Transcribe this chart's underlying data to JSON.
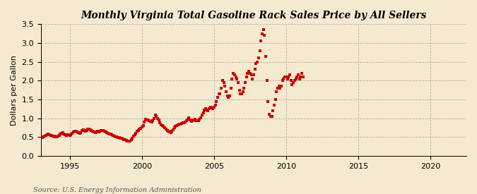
{
  "title": "Monthly Virginia Total Gasoline Rack Sales Price by All Sellers",
  "ylabel": "Dollars per Gallon",
  "source": "Source: U.S. Energy Information Administration",
  "background_color": "#f5ead0",
  "dot_color": "#cc0000",
  "xlim": [
    1993.0,
    2022.5
  ],
  "ylim": [
    0.0,
    3.5
  ],
  "xticks": [
    1995,
    2000,
    2005,
    2010,
    2015,
    2020
  ],
  "yticks": [
    0.0,
    0.5,
    1.0,
    1.5,
    2.0,
    2.5,
    3.0,
    3.5
  ],
  "data": [
    [
      1993.08,
      0.49
    ],
    [
      1993.17,
      0.51
    ],
    [
      1993.25,
      0.52
    ],
    [
      1993.33,
      0.55
    ],
    [
      1993.42,
      0.57
    ],
    [
      1993.5,
      0.58
    ],
    [
      1993.58,
      0.56
    ],
    [
      1993.67,
      0.55
    ],
    [
      1993.75,
      0.54
    ],
    [
      1993.83,
      0.53
    ],
    [
      1993.92,
      0.52
    ],
    [
      1994.0,
      0.5
    ],
    [
      1994.08,
      0.51
    ],
    [
      1994.17,
      0.53
    ],
    [
      1994.25,
      0.55
    ],
    [
      1994.33,
      0.58
    ],
    [
      1994.42,
      0.6
    ],
    [
      1994.5,
      0.62
    ],
    [
      1994.58,
      0.59
    ],
    [
      1994.67,
      0.57
    ],
    [
      1994.75,
      0.55
    ],
    [
      1994.83,
      0.56
    ],
    [
      1994.92,
      0.57
    ],
    [
      1995.0,
      0.55
    ],
    [
      1995.08,
      0.56
    ],
    [
      1995.17,
      0.6
    ],
    [
      1995.25,
      0.63
    ],
    [
      1995.33,
      0.66
    ],
    [
      1995.42,
      0.65
    ],
    [
      1995.5,
      0.63
    ],
    [
      1995.58,
      0.61
    ],
    [
      1995.67,
      0.6
    ],
    [
      1995.75,
      0.62
    ],
    [
      1995.83,
      0.68
    ],
    [
      1995.92,
      0.7
    ],
    [
      1996.0,
      0.68
    ],
    [
      1996.08,
      0.66
    ],
    [
      1996.17,
      0.68
    ],
    [
      1996.25,
      0.72
    ],
    [
      1996.33,
      0.72
    ],
    [
      1996.42,
      0.7
    ],
    [
      1996.5,
      0.68
    ],
    [
      1996.58,
      0.65
    ],
    [
      1996.67,
      0.63
    ],
    [
      1996.75,
      0.62
    ],
    [
      1996.83,
      0.64
    ],
    [
      1996.92,
      0.65
    ],
    [
      1997.0,
      0.63
    ],
    [
      1997.08,
      0.65
    ],
    [
      1997.17,
      0.67
    ],
    [
      1997.25,
      0.68
    ],
    [
      1997.33,
      0.68
    ],
    [
      1997.42,
      0.66
    ],
    [
      1997.5,
      0.64
    ],
    [
      1997.58,
      0.62
    ],
    [
      1997.67,
      0.6
    ],
    [
      1997.75,
      0.59
    ],
    [
      1997.83,
      0.58
    ],
    [
      1997.92,
      0.56
    ],
    [
      1998.0,
      0.54
    ],
    [
      1998.08,
      0.52
    ],
    [
      1998.17,
      0.51
    ],
    [
      1998.25,
      0.5
    ],
    [
      1998.33,
      0.49
    ],
    [
      1998.42,
      0.48
    ],
    [
      1998.5,
      0.47
    ],
    [
      1998.58,
      0.46
    ],
    [
      1998.67,
      0.45
    ],
    [
      1998.75,
      0.44
    ],
    [
      1998.83,
      0.43
    ],
    [
      1998.92,
      0.42
    ],
    [
      1999.0,
      0.4
    ],
    [
      1999.08,
      0.39
    ],
    [
      1999.17,
      0.4
    ],
    [
      1999.25,
      0.43
    ],
    [
      1999.33,
      0.47
    ],
    [
      1999.42,
      0.52
    ],
    [
      1999.5,
      0.56
    ],
    [
      1999.58,
      0.6
    ],
    [
      1999.67,
      0.65
    ],
    [
      1999.75,
      0.68
    ],
    [
      1999.83,
      0.72
    ],
    [
      1999.92,
      0.74
    ],
    [
      2000.0,
      0.76
    ],
    [
      2000.08,
      0.8
    ],
    [
      2000.17,
      0.9
    ],
    [
      2000.25,
      0.97
    ],
    [
      2000.33,
      0.96
    ],
    [
      2000.42,
      0.95
    ],
    [
      2000.5,
      0.93
    ],
    [
      2000.58,
      0.91
    ],
    [
      2000.67,
      0.9
    ],
    [
      2000.75,
      0.93
    ],
    [
      2000.83,
      1.0
    ],
    [
      2000.92,
      1.08
    ],
    [
      2001.0,
      1.05
    ],
    [
      2001.08,
      1.0
    ],
    [
      2001.17,
      0.95
    ],
    [
      2001.25,
      0.88
    ],
    [
      2001.33,
      0.82
    ],
    [
      2001.42,
      0.8
    ],
    [
      2001.5,
      0.78
    ],
    [
      2001.58,
      0.75
    ],
    [
      2001.67,
      0.72
    ],
    [
      2001.75,
      0.68
    ],
    [
      2001.83,
      0.65
    ],
    [
      2001.92,
      0.63
    ],
    [
      2002.0,
      0.62
    ],
    [
      2002.08,
      0.65
    ],
    [
      2002.17,
      0.7
    ],
    [
      2002.25,
      0.75
    ],
    [
      2002.33,
      0.78
    ],
    [
      2002.42,
      0.8
    ],
    [
      2002.5,
      0.82
    ],
    [
      2002.58,
      0.84
    ],
    [
      2002.67,
      0.85
    ],
    [
      2002.75,
      0.87
    ],
    [
      2002.83,
      0.88
    ],
    [
      2002.92,
      0.89
    ],
    [
      2003.0,
      0.9
    ],
    [
      2003.08,
      0.93
    ],
    [
      2003.17,
      0.98
    ],
    [
      2003.25,
      1.02
    ],
    [
      2003.33,
      0.95
    ],
    [
      2003.42,
      0.92
    ],
    [
      2003.5,
      0.93
    ],
    [
      2003.58,
      0.96
    ],
    [
      2003.67,
      0.97
    ],
    [
      2003.75,
      0.94
    ],
    [
      2003.83,
      0.93
    ],
    [
      2003.92,
      0.94
    ],
    [
      2004.0,
      0.97
    ],
    [
      2004.08,
      1.02
    ],
    [
      2004.17,
      1.08
    ],
    [
      2004.25,
      1.15
    ],
    [
      2004.33,
      1.22
    ],
    [
      2004.42,
      1.25
    ],
    [
      2004.5,
      1.22
    ],
    [
      2004.58,
      1.2
    ],
    [
      2004.67,
      1.25
    ],
    [
      2004.75,
      1.3
    ],
    [
      2004.83,
      1.28
    ],
    [
      2004.92,
      1.26
    ],
    [
      2005.0,
      1.3
    ],
    [
      2005.08,
      1.35
    ],
    [
      2005.17,
      1.45
    ],
    [
      2005.25,
      1.55
    ],
    [
      2005.33,
      1.65
    ],
    [
      2005.42,
      1.65
    ],
    [
      2005.5,
      1.8
    ],
    [
      2005.58,
      2.0
    ],
    [
      2005.67,
      1.95
    ],
    [
      2005.75,
      1.85
    ],
    [
      2005.83,
      1.7
    ],
    [
      2005.92,
      1.6
    ],
    [
      2006.0,
      1.55
    ],
    [
      2006.08,
      1.6
    ],
    [
      2006.17,
      1.8
    ],
    [
      2006.25,
      2.05
    ],
    [
      2006.33,
      2.2
    ],
    [
      2006.42,
      2.15
    ],
    [
      2006.5,
      2.1
    ],
    [
      2006.58,
      2.05
    ],
    [
      2006.67,
      1.95
    ],
    [
      2006.75,
      1.75
    ],
    [
      2006.83,
      1.65
    ],
    [
      2006.92,
      1.65
    ],
    [
      2007.0,
      1.7
    ],
    [
      2007.08,
      1.8
    ],
    [
      2007.17,
      1.95
    ],
    [
      2007.25,
      2.1
    ],
    [
      2007.33,
      2.2
    ],
    [
      2007.42,
      2.25
    ],
    [
      2007.5,
      2.2
    ],
    [
      2007.58,
      2.15
    ],
    [
      2007.67,
      2.05
    ],
    [
      2007.75,
      2.15
    ],
    [
      2007.83,
      2.3
    ],
    [
      2007.92,
      2.45
    ],
    [
      2008.0,
      2.5
    ],
    [
      2008.08,
      2.6
    ],
    [
      2008.17,
      2.8
    ],
    [
      2008.25,
      3.05
    ],
    [
      2008.33,
      3.25
    ],
    [
      2008.42,
      3.35
    ],
    [
      2008.5,
      3.2
    ],
    [
      2008.58,
      2.65
    ],
    [
      2008.67,
      2.0
    ],
    [
      2008.75,
      1.45
    ],
    [
      2008.83,
      1.1
    ],
    [
      2008.92,
      1.05
    ],
    [
      2009.0,
      1.05
    ],
    [
      2009.08,
      1.2
    ],
    [
      2009.17,
      1.35
    ],
    [
      2009.25,
      1.5
    ],
    [
      2009.33,
      1.7
    ],
    [
      2009.42,
      1.8
    ],
    [
      2009.5,
      1.85
    ],
    [
      2009.58,
      1.8
    ],
    [
      2009.67,
      1.85
    ],
    [
      2009.75,
      2.0
    ],
    [
      2009.83,
      2.05
    ],
    [
      2009.92,
      2.1
    ],
    [
      2010.0,
      2.1
    ],
    [
      2010.08,
      2.05
    ],
    [
      2010.17,
      2.1
    ],
    [
      2010.25,
      2.15
    ],
    [
      2010.33,
      2.0
    ],
    [
      2010.42,
      1.9
    ],
    [
      2010.5,
      1.95
    ],
    [
      2010.58,
      2.0
    ],
    [
      2010.67,
      2.05
    ],
    [
      2010.75,
      2.1
    ],
    [
      2010.83,
      2.15
    ],
    [
      2010.92,
      2.05
    ],
    [
      2011.0,
      2.1
    ],
    [
      2011.08,
      2.2
    ],
    [
      2011.17,
      2.1
    ]
  ]
}
